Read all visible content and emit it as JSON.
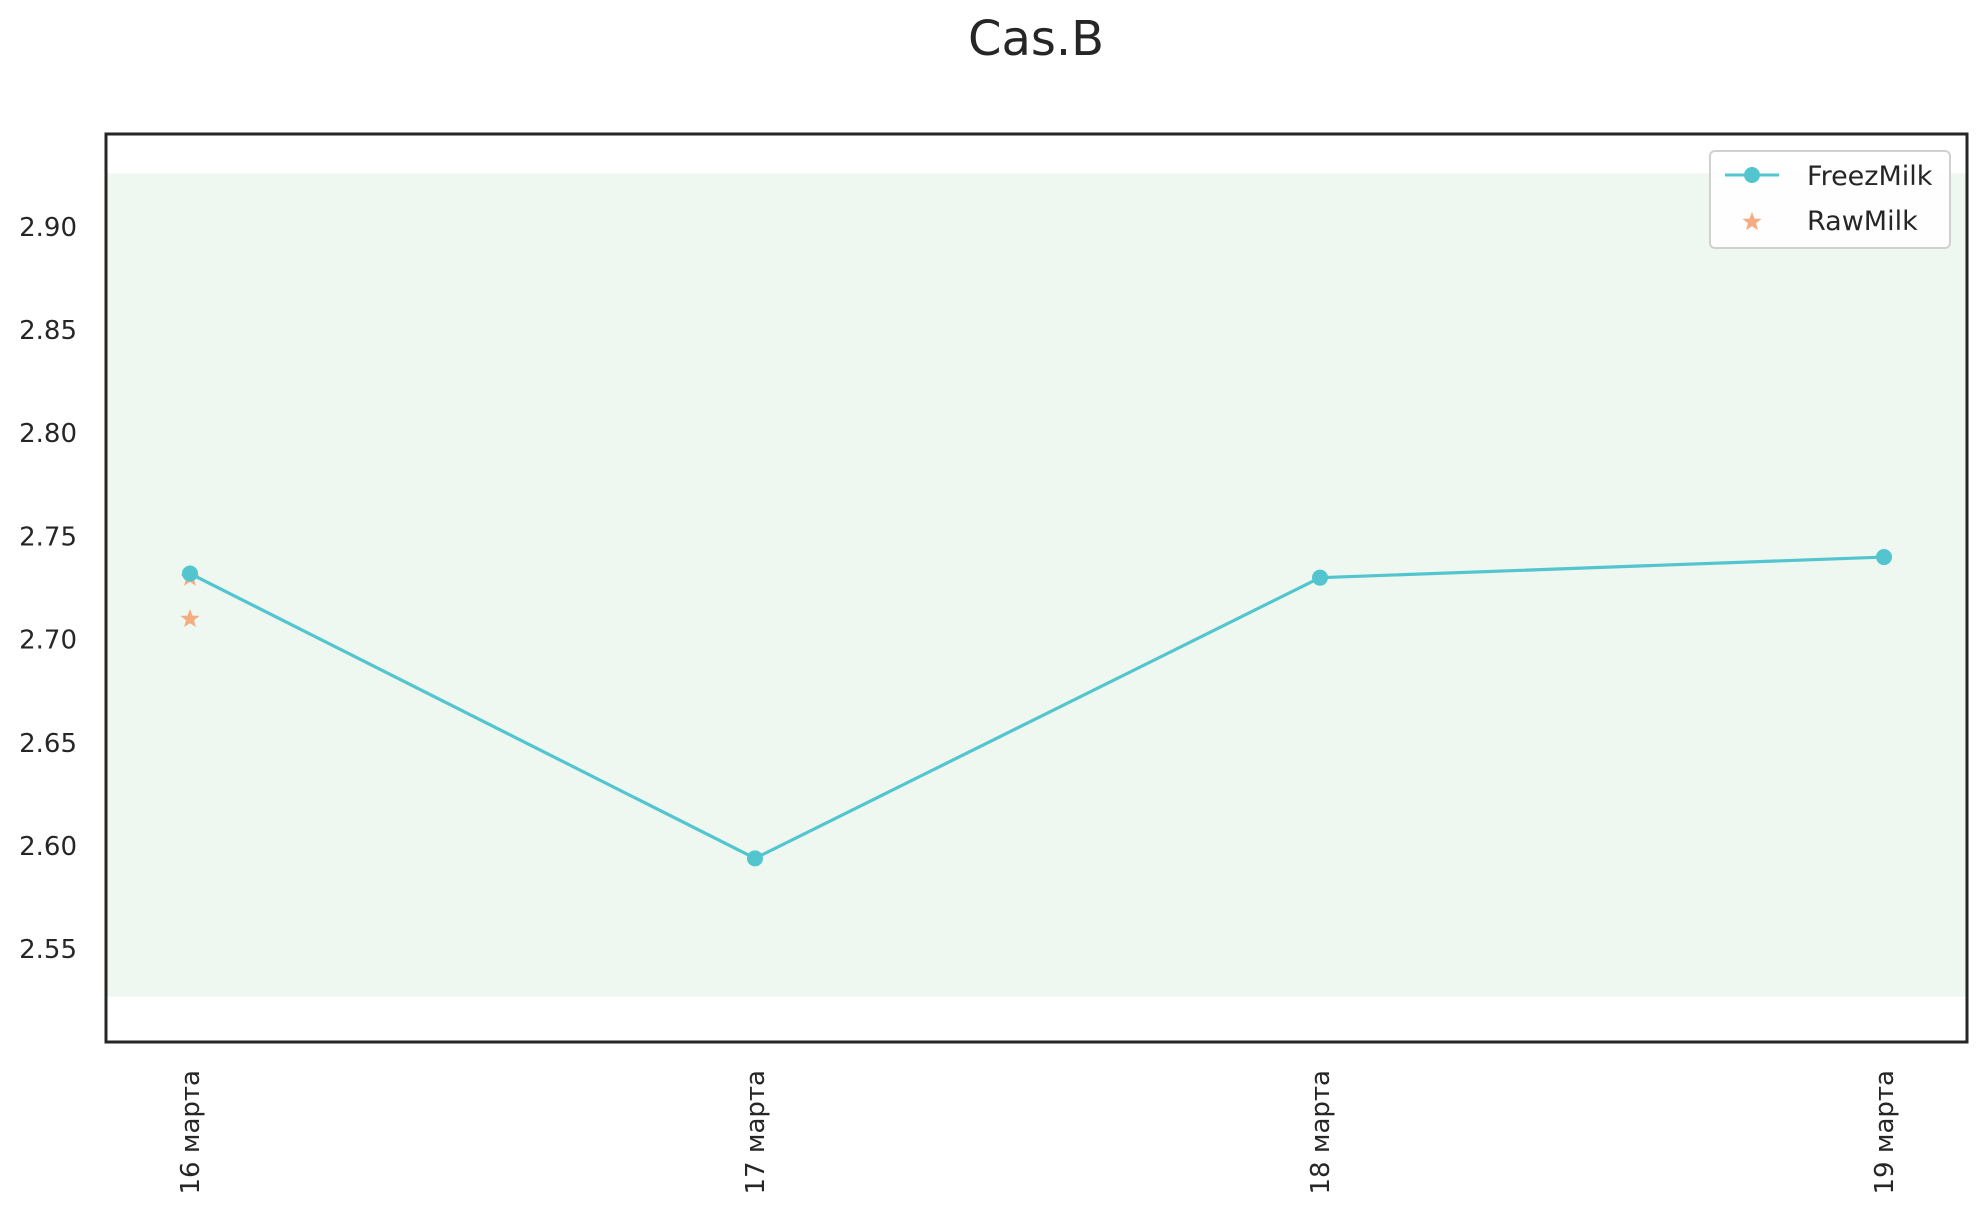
{
  "chart_data": {
    "type": "line",
    "title": "Cas.B",
    "xlabel": "",
    "ylabel": "",
    "categories": [
      "16 марта",
      "17 марта",
      "18 марта",
      "19 марта"
    ],
    "ylim": [
      2.505,
      2.945
    ],
    "yticks": [
      "2.55",
      "2.60",
      "2.65",
      "2.70",
      "2.75",
      "2.80",
      "2.85",
      "2.90"
    ],
    "band": {
      "low": 2.527,
      "high": 2.926,
      "color": "#eef7f0"
    },
    "grid": false,
    "legend_position": "upper right",
    "series": [
      {
        "name": "FreezMilk",
        "kind": "line-marker",
        "color": "#52c5cf",
        "values": [
          2.732,
          2.594,
          2.73,
          2.74
        ]
      },
      {
        "name": "RawMilk",
        "kind": "star-scatter",
        "color": "#f4ac82",
        "points": [
          {
            "x": "16 марта",
            "y": 2.73
          },
          {
            "x": "16 марта",
            "y": 2.71
          }
        ]
      }
    ]
  }
}
